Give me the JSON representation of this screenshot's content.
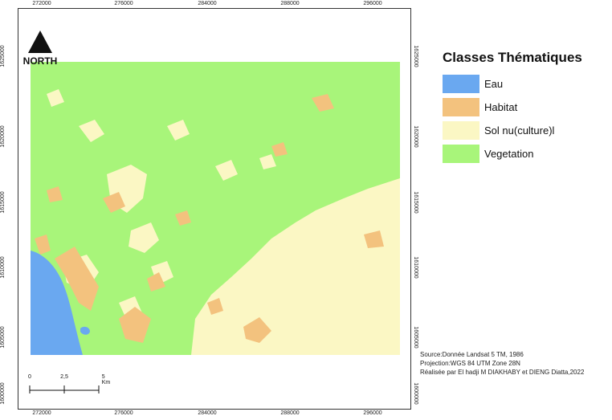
{
  "map": {
    "ticks_x": [
      "272000",
      "276000",
      "284000",
      "288000",
      "296000"
    ],
    "ticks_y_left": [
      "1625000",
      "1620000",
      "1615000",
      "1610000",
      "1605000",
      "1600000"
    ],
    "ticks_y_right": [
      "1625000",
      "1620000",
      "1615000",
      "1610000",
      "1605000",
      "1600000"
    ]
  },
  "north_arrow": {
    "label": "NORTH"
  },
  "legend": {
    "title": "Classes Thématiques",
    "items": [
      {
        "label": "Eau",
        "color": "#6aa8f0"
      },
      {
        "label": "Habitat",
        "color": "#f3c27e"
      },
      {
        "label": "Sol nu(culture)l",
        "color": "#fbf7c4"
      },
      {
        "label": "Vegetation",
        "color": "#a8f57a"
      }
    ]
  },
  "credits": {
    "source": "Source:Donnée Landsat 5 TM, 1986",
    "projection": "Projection:WGS 84 UTM Zone 28N",
    "author": "Réalisée par El hadji M DIAKHABY et DIENG Diatta,2022"
  },
  "scale_bar": {
    "labels": [
      "0",
      "2,5",
      "5 Km"
    ]
  }
}
